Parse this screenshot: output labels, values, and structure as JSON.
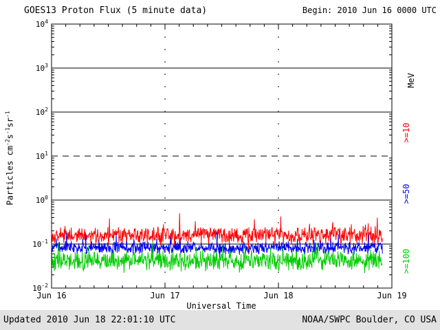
{
  "header": {
    "title": "GOES13 Proton Flux (5 minute data)",
    "begin": "Begin: 2010 Jun 16 0000 UTC"
  },
  "footer": {
    "updated": "Updated 2010 Jun 18 22:01:10 UTC",
    "source": "NOAA/SWPC Boulder, CO USA"
  },
  "labels": {
    "mev": "MeV"
  },
  "chart_data": {
    "type": "line",
    "title": "GOES13 Proton Flux (5 minute data)",
    "xlabel": "Universal Time",
    "ylabel": "Particles cm-2 s-1 sr-1",
    "ylabel_parts": [
      {
        "t": "Particles cm"
      },
      {
        "sup": "-2"
      },
      {
        "t": "s"
      },
      {
        "sup": "-1"
      },
      {
        "t": "sr"
      },
      {
        "sup": "-1"
      }
    ],
    "x_ticks": [
      "Jun 16",
      "Jun 17",
      "Jun 18",
      "Jun 19"
    ],
    "y_tick_exponents": [
      4,
      3,
      2,
      1,
      0,
      -1,
      -2
    ],
    "ylim_log10": [
      -2,
      4
    ],
    "x_days": 3,
    "samples_per_day": 288,
    "data_end_day_fraction": 2.9167,
    "dashed_gridline_at_log10": 1,
    "vertical_gridlines_at_days": [
      1,
      2
    ],
    "grid": "on",
    "legend_position": "right-rotated",
    "unit_label": "MeV",
    "series": [
      {
        "name": ">=10 MeV",
        "legend": ">=10",
        "color": "#ff0000",
        "log10_mean": -0.8,
        "log10_noise": 0.13,
        "spike_prob": 0.05,
        "spike_amp": 0.35,
        "approx_flux_range": [
          0.09,
          0.45
        ],
        "seed": 101
      },
      {
        "name": ">=50 MeV",
        "legend": ">=50",
        "color": "#0000ee",
        "log10_mean": -1.08,
        "log10_noise": 0.1,
        "spike_prob": 0.04,
        "spike_amp": 0.25,
        "approx_flux_range": [
          0.05,
          0.17
        ],
        "seed": 202
      },
      {
        "name": ">=100 MeV",
        "legend": ">=100",
        "color": "#00cc00",
        "log10_mean": -1.38,
        "log10_noise": 0.15,
        "spike_prob": 0.06,
        "spike_amp": 0.3,
        "approx_flux_range": [
          0.025,
          0.1
        ],
        "seed": 303
      }
    ]
  }
}
